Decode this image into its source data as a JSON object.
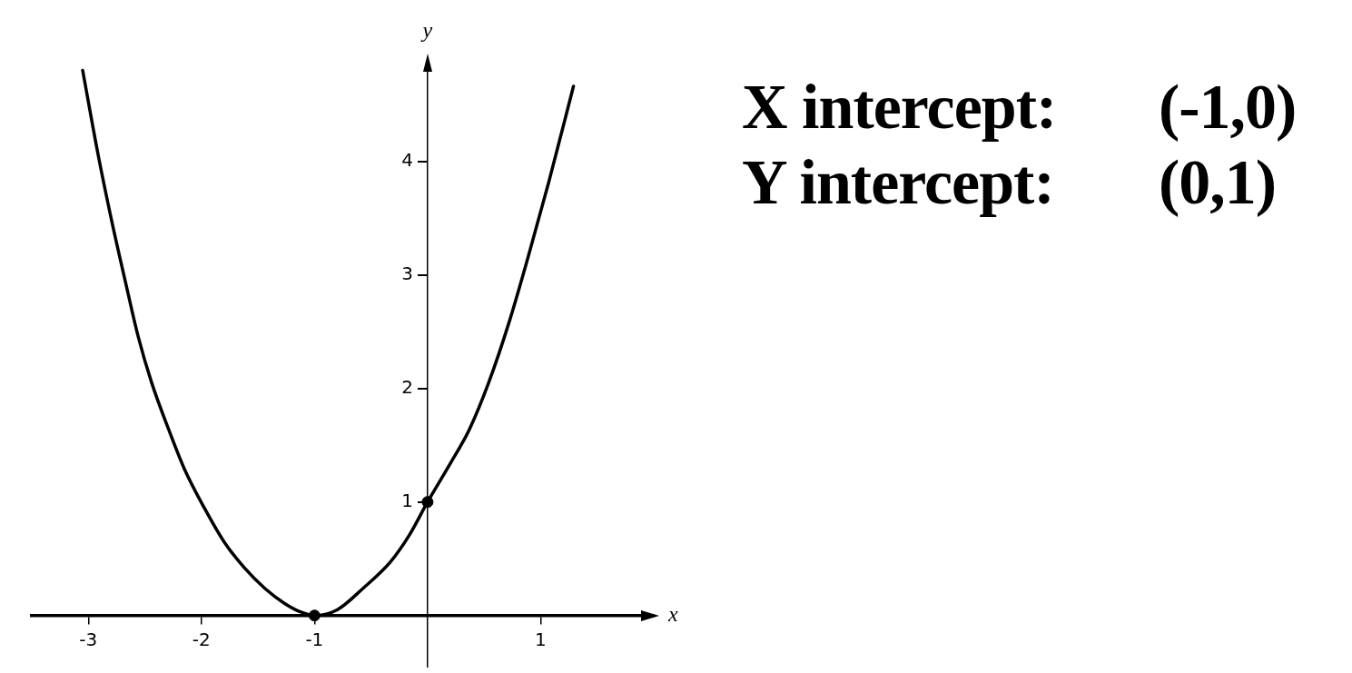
{
  "chart_data": {
    "type": "line",
    "xlabel": "x",
    "ylabel": "y",
    "annotations": [
      "X intercept:",
      "(-1,0)",
      "Y intercept:",
      "(0,1)"
    ],
    "xlim": [
      -3.5,
      2
    ],
    "ylim": [
      -0.45,
      4.9
    ],
    "xticks": [
      -3,
      -2,
      -1,
      1
    ],
    "yticks": [
      1,
      2,
      3,
      4
    ],
    "grid": false,
    "legend": false,
    "series": [
      {
        "type": "line",
        "color": "#000000",
        "marker": "none",
        "x": [
          -3.05,
          -2.91,
          -2.79,
          -2.67,
          -2.56,
          -2.44,
          -2.29,
          -2.15,
          -1.97,
          -1.8,
          -1.62,
          -1.44,
          -1.27,
          -1.12,
          -1,
          -0.8,
          -0.57,
          -0.33,
          -0.16,
          0,
          0.19,
          0.37,
          0.54,
          0.72,
          0.89,
          1.07,
          1.29
        ],
        "values": [
          4.8,
          4.04,
          3.46,
          2.93,
          2.46,
          2.05,
          1.64,
          1.29,
          0.94,
          0.65,
          0.42,
          0.24,
          0.11,
          0.03,
          0,
          0.05,
          0.24,
          0.47,
          0.71,
          1,
          1.32,
          1.64,
          2.05,
          2.58,
          3.16,
          3.81,
          4.66
        ]
      },
      {
        "type": "scatter",
        "color": "#000000",
        "marker": "circle",
        "x": [
          -1,
          0
        ],
        "values": [
          0,
          1
        ]
      }
    ]
  }
}
